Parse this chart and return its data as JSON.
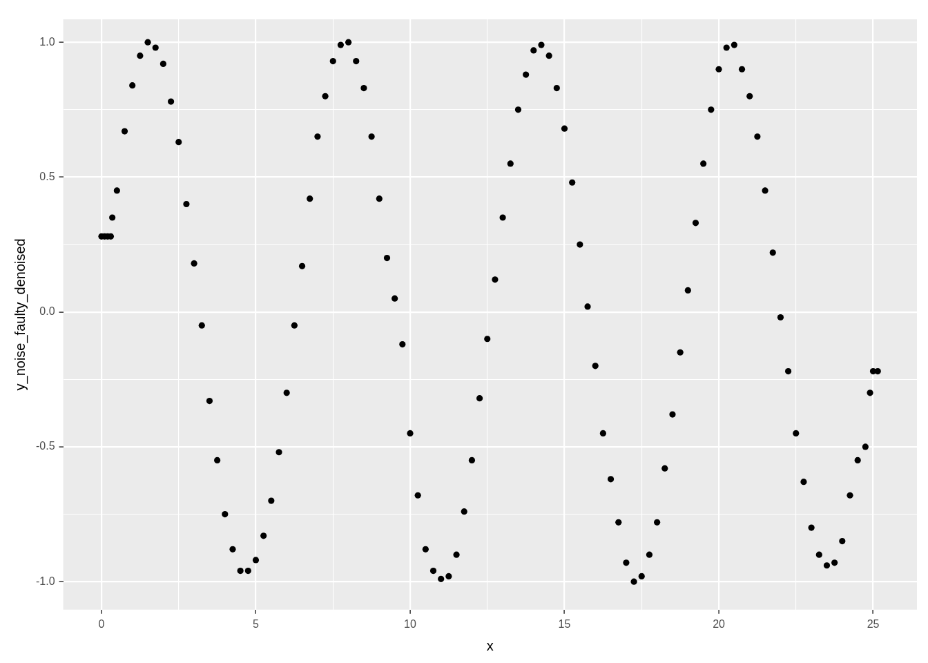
{
  "chart_data": {
    "type": "scatter",
    "xlabel": "x",
    "ylabel": "y_noise_faulty_denoised",
    "xlim": [
      -1.24,
      26.42
    ],
    "ylim": [
      -1.104,
      1.085
    ],
    "xticks": [
      0,
      {
        "value": 2.5,
        "label": null
      },
      5,
      {
        "value": 7.5,
        "label": null
      },
      10,
      {
        "value": 12.5,
        "label": null
      },
      15,
      {
        "value": 17.5,
        "label": null
      },
      20,
      {
        "value": 22.5,
        "label": null
      },
      25
    ],
    "yticks": [
      {
        "value": -1,
        "label": "-1.0"
      },
      {
        "value": -0.75,
        "label": null
      },
      {
        "value": -0.5,
        "label": "-0.5"
      },
      {
        "value": -0.25,
        "label": null
      },
      {
        "value": 0,
        "label": "0.0"
      },
      {
        "value": 0.25,
        "label": null
      },
      {
        "value": 0.5,
        "label": "0.5"
      },
      {
        "value": 0.75,
        "label": null
      },
      {
        "value": 1,
        "label": "1.0"
      }
    ],
    "grid": true,
    "marker": "circle",
    "series": [
      {
        "color": "#000000",
        "x": [
          0,
          0.1,
          0.2,
          0.3,
          0.35,
          0.5,
          0.75,
          1,
          1.25,
          1.5,
          1.75,
          2,
          2.25,
          2.5,
          2.75,
          3,
          3.25,
          3.5,
          3.75,
          4,
          4.25,
          4.5,
          4.75,
          5,
          5.25,
          5.5,
          5.75,
          6,
          6.25,
          6.5,
          6.75,
          7,
          7.25,
          7.5,
          7.75,
          8,
          8.25,
          8.5,
          8.75,
          9,
          9.25,
          9.5,
          9.75,
          10,
          10.25,
          10.5,
          10.75,
          11,
          11.25,
          11.5,
          11.75,
          12,
          12.25,
          12.5,
          12.75,
          13,
          13.25,
          13.5,
          13.75,
          14,
          14.25,
          14.5,
          14.75,
          15,
          15.25,
          15.5,
          15.75,
          16,
          16.25,
          16.5,
          16.75,
          17,
          17.25,
          17.5,
          17.75,
          18,
          18.25,
          18.5,
          18.75,
          19,
          19.25,
          19.5,
          19.75,
          20,
          20.25,
          20.5,
          20.75,
          21,
          21.25,
          21.5,
          21.75,
          22,
          22.25,
          22.5,
          22.75,
          23,
          23.25,
          23.5,
          23.75,
          24,
          24.25,
          24.5,
          24.75,
          24.9,
          25,
          25.15
        ],
        "values": [
          0.28,
          0.28,
          0.28,
          0.28,
          0.35,
          0.45,
          0.67,
          0.84,
          0.95,
          1.0,
          0.98,
          0.92,
          0.78,
          0.63,
          0.4,
          0.18,
          -0.05,
          -0.33,
          -0.55,
          -0.75,
          -0.88,
          -0.96,
          -0.96,
          -0.92,
          -0.83,
          -0.7,
          -0.52,
          -0.3,
          -0.05,
          0.17,
          0.42,
          0.65,
          0.8,
          0.93,
          0.99,
          1.0,
          0.93,
          0.83,
          0.65,
          0.42,
          0.2,
          0.05,
          -0.12,
          -0.45,
          -0.68,
          -0.88,
          -0.96,
          -0.99,
          -0.98,
          -0.9,
          -0.74,
          -0.55,
          -0.32,
          -0.1,
          0.12,
          0.35,
          0.55,
          0.75,
          0.88,
          0.97,
          0.99,
          0.95,
          0.83,
          0.68,
          0.48,
          0.25,
          0.02,
          -0.2,
          -0.45,
          -0.62,
          -0.78,
          -0.93,
          -1.0,
          -0.98,
          -0.9,
          -0.78,
          -0.58,
          -0.38,
          -0.15,
          0.08,
          0.33,
          0.55,
          0.75,
          0.9,
          0.98,
          0.99,
          0.9,
          0.8,
          0.65,
          0.45,
          0.22,
          -0.02,
          -0.22,
          -0.45,
          -0.63,
          -0.8,
          -0.9,
          -0.94,
          -0.93,
          -0.85,
          -0.68,
          -0.55,
          -0.5,
          -0.3,
          -0.22,
          -0.22
        ]
      }
    ]
  }
}
